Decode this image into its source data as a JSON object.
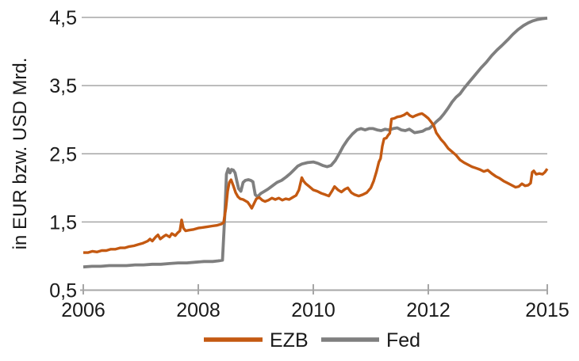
{
  "chart_data": {
    "type": "line",
    "title": "",
    "xlabel": "",
    "ylabel": "in EUR bzw. USD Mrd.",
    "ylim": [
      0.5,
      4.5
    ],
    "grid": "horizontal",
    "legend_position": "bottom-center",
    "colors": {
      "ezb": "#C45911",
      "fed": "#7F7F7F",
      "gridline": "#A6A6A6",
      "axis": "#A6A6A6",
      "text": "#1a1a1a"
    },
    "y_ticks": [
      {
        "value": 0.5,
        "label": "0,5"
      },
      {
        "value": 1.5,
        "label": "1,5"
      },
      {
        "value": 2.5,
        "label": "2,5"
      },
      {
        "value": 3.5,
        "label": "3,5"
      },
      {
        "value": 4.5,
        "label": "4,5"
      }
    ],
    "x_ticks": [
      {
        "value": 2006,
        "label": "2006"
      },
      {
        "value": 2008,
        "label": "2008"
      },
      {
        "value": 2010,
        "label": "2010"
      },
      {
        "value": 2012,
        "label": "2012"
      },
      {
        "value": 2015,
        "label": "2015"
      }
    ],
    "series": [
      {
        "name": "EZB",
        "color": "#C45911",
        "points": [
          [
            2006.0,
            1.05
          ],
          [
            2006.08,
            1.05
          ],
          [
            2006.16,
            1.07
          ],
          [
            2006.24,
            1.06
          ],
          [
            2006.32,
            1.08
          ],
          [
            2006.4,
            1.08
          ],
          [
            2006.48,
            1.1
          ],
          [
            2006.56,
            1.1
          ],
          [
            2006.64,
            1.12
          ],
          [
            2006.72,
            1.12
          ],
          [
            2006.8,
            1.14
          ],
          [
            2006.88,
            1.15
          ],
          [
            2006.96,
            1.17
          ],
          [
            2007.04,
            1.19
          ],
          [
            2007.12,
            1.22
          ],
          [
            2007.16,
            1.25
          ],
          [
            2007.2,
            1.22
          ],
          [
            2007.26,
            1.28
          ],
          [
            2007.3,
            1.31
          ],
          [
            2007.34,
            1.25
          ],
          [
            2007.4,
            1.29
          ],
          [
            2007.44,
            1.31
          ],
          [
            2007.5,
            1.28
          ],
          [
            2007.54,
            1.33
          ],
          [
            2007.6,
            1.3
          ],
          [
            2007.64,
            1.34
          ],
          [
            2007.68,
            1.37
          ],
          [
            2007.71,
            1.53
          ],
          [
            2007.74,
            1.41
          ],
          [
            2007.78,
            1.37
          ],
          [
            2007.84,
            1.38
          ],
          [
            2007.92,
            1.39
          ],
          [
            2008.0,
            1.41
          ],
          [
            2008.08,
            1.42
          ],
          [
            2008.16,
            1.43
          ],
          [
            2008.24,
            1.44
          ],
          [
            2008.32,
            1.45
          ],
          [
            2008.4,
            1.47
          ],
          [
            2008.44,
            1.49
          ],
          [
            2008.48,
            1.7
          ],
          [
            2008.51,
            1.95
          ],
          [
            2008.54,
            2.08
          ],
          [
            2008.57,
            2.12
          ],
          [
            2008.61,
            2.03
          ],
          [
            2008.65,
            1.93
          ],
          [
            2008.69,
            1.87
          ],
          [
            2008.73,
            1.84
          ],
          [
            2008.78,
            1.83
          ],
          [
            2008.82,
            1.81
          ],
          [
            2008.86,
            1.79
          ],
          [
            2008.9,
            1.74
          ],
          [
            2008.93,
            1.7
          ],
          [
            2008.97,
            1.77
          ],
          [
            2009.01,
            1.84
          ],
          [
            2009.06,
            1.86
          ],
          [
            2009.11,
            1.82
          ],
          [
            2009.16,
            1.8
          ],
          [
            2009.22,
            1.82
          ],
          [
            2009.28,
            1.85
          ],
          [
            2009.34,
            1.83
          ],
          [
            2009.4,
            1.85
          ],
          [
            2009.46,
            1.82
          ],
          [
            2009.52,
            1.84
          ],
          [
            2009.58,
            1.83
          ],
          [
            2009.64,
            1.86
          ],
          [
            2009.7,
            1.89
          ],
          [
            2009.75,
            1.97
          ],
          [
            2009.8,
            2.15
          ],
          [
            2009.83,
            2.1
          ],
          [
            2009.87,
            2.06
          ],
          [
            2009.93,
            2.02
          ],
          [
            2010.0,
            1.97
          ],
          [
            2010.07,
            1.95
          ],
          [
            2010.14,
            1.92
          ],
          [
            2010.21,
            1.9
          ],
          [
            2010.27,
            1.88
          ],
          [
            2010.33,
            1.96
          ],
          [
            2010.37,
            2.02
          ],
          [
            2010.43,
            1.97
          ],
          [
            2010.49,
            1.94
          ],
          [
            2010.55,
            1.98
          ],
          [
            2010.6,
            2.0
          ],
          [
            2010.66,
            1.93
          ],
          [
            2010.72,
            1.9
          ],
          [
            2010.79,
            1.88
          ],
          [
            2010.86,
            1.9
          ],
          [
            2010.93,
            1.93
          ],
          [
            2011.0,
            2.0
          ],
          [
            2011.05,
            2.1
          ],
          [
            2011.1,
            2.24
          ],
          [
            2011.14,
            2.38
          ],
          [
            2011.17,
            2.43
          ],
          [
            2011.2,
            2.61
          ],
          [
            2011.23,
            2.72
          ],
          [
            2011.27,
            2.73
          ],
          [
            2011.3,
            2.77
          ],
          [
            2011.33,
            2.8
          ],
          [
            2011.36,
            3.01
          ],
          [
            2011.41,
            3.02
          ],
          [
            2011.46,
            3.04
          ],
          [
            2011.52,
            3.05
          ],
          [
            2011.58,
            3.07
          ],
          [
            2011.63,
            3.1
          ],
          [
            2011.68,
            3.06
          ],
          [
            2011.73,
            3.04
          ],
          [
            2011.78,
            3.06
          ],
          [
            2011.84,
            3.08
          ],
          [
            2011.89,
            3.09
          ],
          [
            2011.94,
            3.06
          ],
          [
            2012.0,
            3.02
          ],
          [
            2012.08,
            2.96
          ],
          [
            2012.14,
            2.91
          ],
          [
            2012.2,
            2.81
          ],
          [
            2012.26,
            2.76
          ],
          [
            2012.32,
            2.71
          ],
          [
            2012.4,
            2.66
          ],
          [
            2012.5,
            2.58
          ],
          [
            2012.6,
            2.53
          ],
          [
            2012.7,
            2.48
          ],
          [
            2012.8,
            2.41
          ],
          [
            2012.9,
            2.37
          ],
          [
            2013.0,
            2.34
          ],
          [
            2013.1,
            2.31
          ],
          [
            2013.2,
            2.29
          ],
          [
            2013.3,
            2.27
          ],
          [
            2013.4,
            2.24
          ],
          [
            2013.5,
            2.26
          ],
          [
            2013.6,
            2.21
          ],
          [
            2013.7,
            2.17
          ],
          [
            2013.8,
            2.14
          ],
          [
            2013.9,
            2.1
          ],
          [
            2014.0,
            2.07
          ],
          [
            2014.1,
            2.04
          ],
          [
            2014.2,
            2.01
          ],
          [
            2014.28,
            2.02
          ],
          [
            2014.36,
            2.06
          ],
          [
            2014.44,
            2.03
          ],
          [
            2014.52,
            2.04
          ],
          [
            2014.58,
            2.07
          ],
          [
            2014.62,
            2.23
          ],
          [
            2014.66,
            2.25
          ],
          [
            2014.72,
            2.2
          ],
          [
            2014.8,
            2.21
          ],
          [
            2014.88,
            2.2
          ],
          [
            2014.94,
            2.23
          ],
          [
            2015.0,
            2.28
          ]
        ]
      },
      {
        "name": "Fed",
        "color": "#7F7F7F",
        "points": [
          [
            2006.0,
            0.84
          ],
          [
            2006.15,
            0.85
          ],
          [
            2006.3,
            0.85
          ],
          [
            2006.45,
            0.86
          ],
          [
            2006.6,
            0.86
          ],
          [
            2006.75,
            0.86
          ],
          [
            2006.9,
            0.87
          ],
          [
            2007.05,
            0.87
          ],
          [
            2007.2,
            0.88
          ],
          [
            2007.35,
            0.88
          ],
          [
            2007.5,
            0.89
          ],
          [
            2007.65,
            0.9
          ],
          [
            2007.8,
            0.9
          ],
          [
            2007.95,
            0.91
          ],
          [
            2008.1,
            0.92
          ],
          [
            2008.25,
            0.92
          ],
          [
            2008.35,
            0.93
          ],
          [
            2008.42,
            0.94
          ],
          [
            2008.46,
            1.6
          ],
          [
            2008.49,
            2.2
          ],
          [
            2008.52,
            2.28
          ],
          [
            2008.55,
            2.22
          ],
          [
            2008.58,
            2.27
          ],
          [
            2008.61,
            2.26
          ],
          [
            2008.64,
            2.22
          ],
          [
            2008.67,
            2.1
          ],
          [
            2008.7,
            1.99
          ],
          [
            2008.74,
            1.95
          ],
          [
            2008.78,
            2.08
          ],
          [
            2008.82,
            2.11
          ],
          [
            2008.87,
            2.12
          ],
          [
            2008.91,
            2.11
          ],
          [
            2008.95,
            2.09
          ],
          [
            2008.99,
            1.9
          ],
          [
            2009.03,
            1.87
          ],
          [
            2009.09,
            1.92
          ],
          [
            2009.15,
            1.95
          ],
          [
            2009.21,
            1.98
          ],
          [
            2009.29,
            2.03
          ],
          [
            2009.37,
            2.08
          ],
          [
            2009.45,
            2.11
          ],
          [
            2009.53,
            2.16
          ],
          [
            2009.6,
            2.21
          ],
          [
            2009.67,
            2.27
          ],
          [
            2009.73,
            2.32
          ],
          [
            2009.8,
            2.35
          ],
          [
            2009.9,
            2.37
          ],
          [
            2010.0,
            2.38
          ],
          [
            2010.08,
            2.36
          ],
          [
            2010.16,
            2.33
          ],
          [
            2010.24,
            2.31
          ],
          [
            2010.31,
            2.33
          ],
          [
            2010.38,
            2.4
          ],
          [
            2010.45,
            2.5
          ],
          [
            2010.52,
            2.61
          ],
          [
            2010.6,
            2.71
          ],
          [
            2010.68,
            2.79
          ],
          [
            2010.76,
            2.85
          ],
          [
            2010.83,
            2.87
          ],
          [
            2010.9,
            2.85
          ],
          [
            2010.97,
            2.87
          ],
          [
            2011.04,
            2.87
          ],
          [
            2011.11,
            2.85
          ],
          [
            2011.18,
            2.84
          ],
          [
            2011.25,
            2.86
          ],
          [
            2011.32,
            2.85
          ],
          [
            2011.39,
            2.87
          ],
          [
            2011.46,
            2.88
          ],
          [
            2011.53,
            2.85
          ],
          [
            2011.6,
            2.84
          ],
          [
            2011.67,
            2.86
          ],
          [
            2011.76,
            2.81
          ],
          [
            2011.83,
            2.82
          ],
          [
            2011.9,
            2.83
          ],
          [
            2011.96,
            2.86
          ],
          [
            2012.02,
            2.87
          ],
          [
            2012.1,
            2.91
          ],
          [
            2012.2,
            2.97
          ],
          [
            2012.3,
            3.02
          ],
          [
            2012.4,
            3.09
          ],
          [
            2012.5,
            3.17
          ],
          [
            2012.6,
            3.26
          ],
          [
            2012.7,
            3.33
          ],
          [
            2012.8,
            3.38
          ],
          [
            2012.9,
            3.46
          ],
          [
            2013.0,
            3.53
          ],
          [
            2013.1,
            3.6
          ],
          [
            2013.2,
            3.67
          ],
          [
            2013.33,
            3.76
          ],
          [
            2013.46,
            3.84
          ],
          [
            2013.6,
            3.94
          ],
          [
            2013.73,
            4.02
          ],
          [
            2013.86,
            4.09
          ],
          [
            2014.0,
            4.17
          ],
          [
            2014.13,
            4.25
          ],
          [
            2014.26,
            4.32
          ],
          [
            2014.4,
            4.38
          ],
          [
            2014.52,
            4.42
          ],
          [
            2014.64,
            4.45
          ],
          [
            2014.76,
            4.47
          ],
          [
            2014.86,
            4.48
          ],
          [
            2015.0,
            4.49
          ]
        ]
      }
    ]
  },
  "legend": {
    "items": [
      {
        "label": "EZB",
        "color": "#C45911"
      },
      {
        "label": "Fed",
        "color": "#7F7F7F"
      }
    ]
  }
}
